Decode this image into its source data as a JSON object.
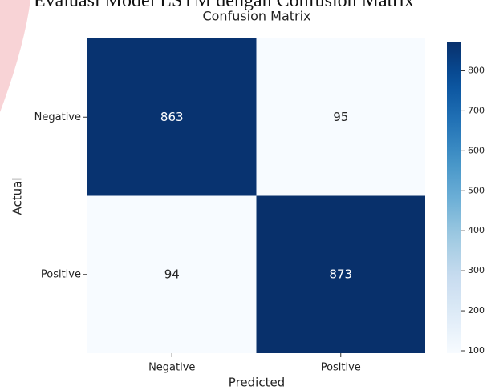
{
  "caption": "Evaluasi Model LSTM dengan Confusion Matrix",
  "chart_data": {
    "type": "heatmap",
    "title": "Confusion Matrix",
    "x_label": "Predicted",
    "y_label": "Actual",
    "x_categories": [
      "Negative",
      "Positive"
    ],
    "y_categories": [
      "Negative",
      "Positive"
    ],
    "values": [
      [
        863,
        95
      ],
      [
        94,
        873
      ]
    ],
    "colormap": "Blues",
    "zlim": [
      94,
      873
    ],
    "zticks": [
      100,
      200,
      300,
      400,
      500,
      600,
      700,
      800
    ]
  }
}
